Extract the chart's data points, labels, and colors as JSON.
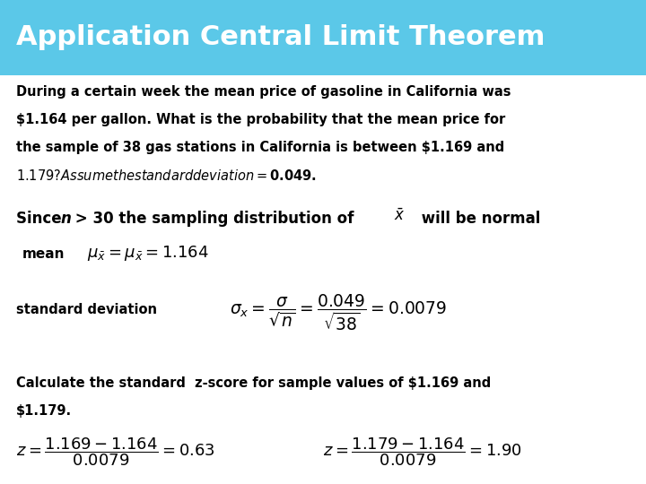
{
  "title": "Application Central Limit Theorem",
  "title_bg_color": "#5BC8E8",
  "title_text_color": "#FFFFFF",
  "body_bg_color": "#FFFFFF",
  "body_text_color": "#000000",
  "para1_line1": "During a certain week the mean price of gasoline in California was",
  "para1_line2": "$1.164 per gallon. What is the probability that the mean price for",
  "para1_line3": "the sample of 38 gas stations in California is between $1.169 and",
  "para1_line4": "$1.179? Assume the standard deviation = $0.049.",
  "calc_line1": "Calculate the standard  z-score for sample values of $1.169 and",
  "calc_line2": "$1.179."
}
